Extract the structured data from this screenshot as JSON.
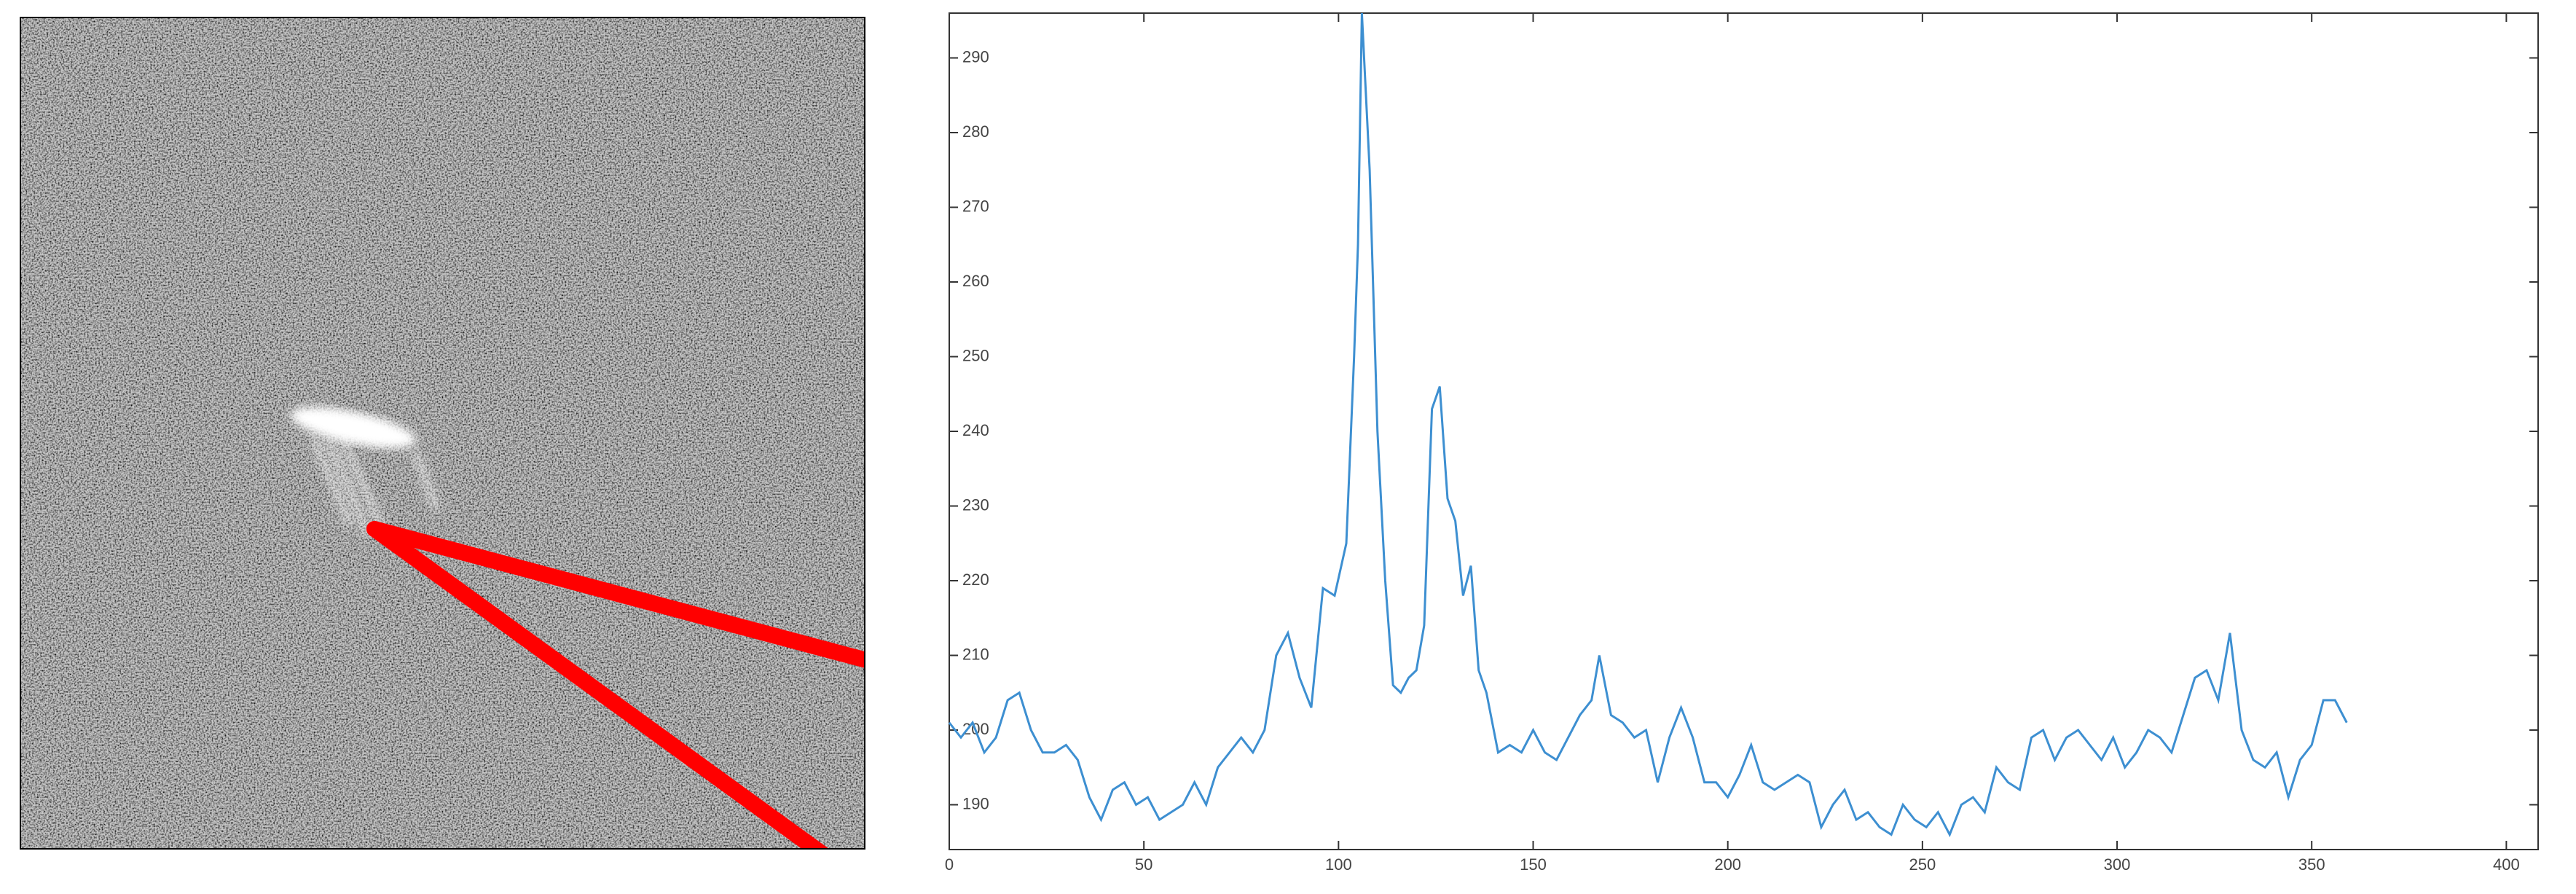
{
  "chart_data": {
    "type": "line",
    "x": [
      0,
      3,
      6,
      9,
      12,
      15,
      18,
      21,
      24,
      27,
      30,
      33,
      36,
      39,
      42,
      45,
      48,
      51,
      54,
      57,
      60,
      63,
      66,
      69,
      72,
      75,
      78,
      81,
      84,
      87,
      90,
      93,
      96,
      99,
      102,
      104,
      105,
      106,
      108,
      110,
      112,
      114,
      116,
      118,
      120,
      122,
      124,
      126,
      128,
      130,
      132,
      134,
      136,
      138,
      141,
      144,
      147,
      150,
      153,
      156,
      159,
      162,
      165,
      167,
      170,
      173,
      176,
      179,
      182,
      185,
      188,
      191,
      194,
      197,
      200,
      203,
      206,
      209,
      212,
      215,
      218,
      221,
      224,
      227,
      230,
      233,
      236,
      239,
      242,
      245,
      248,
      251,
      254,
      257,
      260,
      263,
      266,
      269,
      272,
      275,
      278,
      281,
      284,
      287,
      290,
      293,
      296,
      299,
      302,
      305,
      308,
      311,
      314,
      317,
      320,
      323,
      326,
      329,
      332,
      335,
      338,
      341,
      344,
      347,
      350,
      353,
      356,
      359
    ],
    "series": [
      {
        "color": "#3d8fd1",
        "values": [
          201,
          199,
          201,
          197,
          199,
          204,
          205,
          200,
          197,
          197,
          198,
          196,
          191,
          188,
          192,
          193,
          190,
          191,
          188,
          189,
          190,
          193,
          190,
          195,
          197,
          199,
          197,
          200,
          210,
          213,
          207,
          203,
          219,
          218,
          225,
          250,
          265,
          296,
          275,
          240,
          220,
          206,
          205,
          207,
          208,
          214,
          243,
          246,
          231,
          228,
          218,
          222,
          208,
          205,
          197,
          198,
          197,
          200,
          197,
          196,
          199,
          202,
          204,
          210,
          202,
          201,
          199,
          200,
          193,
          199,
          203,
          199,
          193,
          193,
          191,
          194,
          198,
          193,
          192,
          193,
          194,
          193,
          187,
          190,
          192,
          188,
          189,
          187,
          186,
          190,
          188,
          187,
          189,
          186,
          190,
          191,
          189,
          195,
          193,
          192,
          199,
          200,
          196,
          199,
          200,
          198,
          196,
          199,
          195,
          197,
          200,
          199,
          197,
          202,
          207,
          208,
          204,
          213,
          200,
          196,
          195,
          197,
          191,
          196,
          198,
          204,
          204,
          201
        ]
      }
    ],
    "xlim": [
      0,
      400
    ],
    "ylim": [
      184,
      296
    ],
    "xticks": [
      0,
      50,
      100,
      150,
      200,
      250,
      300,
      350,
      400
    ],
    "yticks": [
      190,
      200,
      210,
      220,
      230,
      240,
      250,
      260,
      270,
      280,
      290
    ]
  }
}
